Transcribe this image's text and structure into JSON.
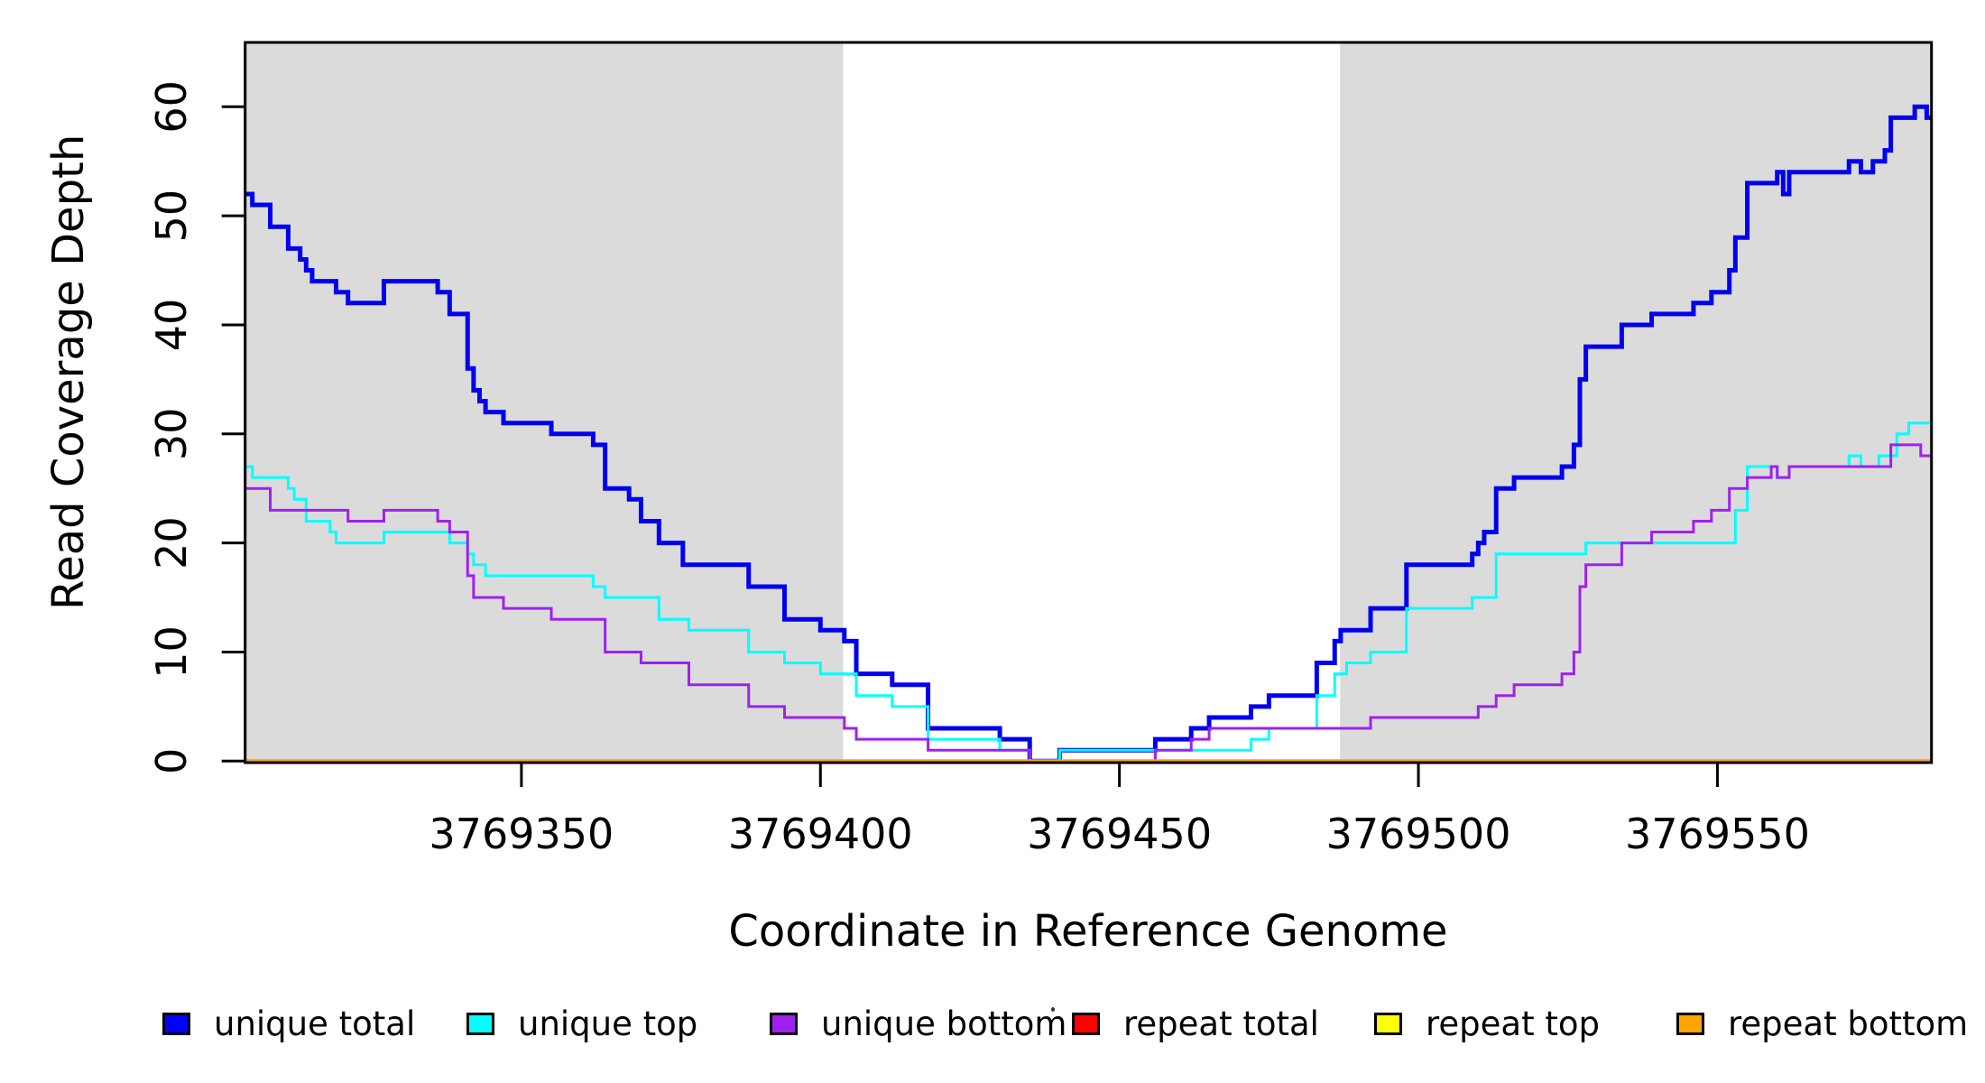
{
  "figure": {
    "x_axis_title": "Coordinate in Reference Genome",
    "y_axis_title": "Read Coverage Depth"
  },
  "chart_data": {
    "type": "line",
    "subtype": "step-after",
    "title": "",
    "xlabel": "Coordinate in Reference Genome",
    "ylabel": "Read Coverage Depth",
    "xlim": [
      3769303.8,
      3769585.8
    ],
    "ylim": [
      0,
      65.9
    ],
    "x_ticks": [
      3769350,
      3769400,
      3769450,
      3769500,
      3769550
    ],
    "y_ticks": [
      0,
      10,
      20,
      30,
      40,
      50,
      60
    ],
    "grid": false,
    "legend_position": "bottom",
    "background_color": "#ffffff",
    "shaded_region_color": "#DBDBDB",
    "shaded_regions": [
      {
        "x0": 3769303.8,
        "x1": 3769403.8
      },
      {
        "x0": 3769486.9,
        "x1": 3769585.8
      }
    ],
    "series": [
      {
        "name": "unique total",
        "color": "#0000EE",
        "width": 5,
        "points": [
          [
            3769304,
            52
          ],
          [
            3769305,
            51
          ],
          [
            3769308,
            49
          ],
          [
            3769311,
            47
          ],
          [
            3769313,
            46
          ],
          [
            3769314,
            45
          ],
          [
            3769315,
            44
          ],
          [
            3769319,
            43
          ],
          [
            3769321,
            42
          ],
          [
            3769327,
            44
          ],
          [
            3769336,
            43
          ],
          [
            3769338,
            41
          ],
          [
            3769341,
            36
          ],
          [
            3769342,
            34
          ],
          [
            3769343,
            33
          ],
          [
            3769344,
            32
          ],
          [
            3769347,
            31
          ],
          [
            3769355,
            30
          ],
          [
            3769362,
            29
          ],
          [
            3769364,
            25
          ],
          [
            3769368,
            24
          ],
          [
            3769370,
            22
          ],
          [
            3769373,
            20
          ],
          [
            3769377,
            18
          ],
          [
            3769388,
            16
          ],
          [
            3769394,
            13
          ],
          [
            3769400,
            12
          ],
          [
            3769404,
            11
          ],
          [
            3769406,
            8
          ],
          [
            3769412,
            7
          ],
          [
            3769418,
            3
          ],
          [
            3769430,
            2
          ],
          [
            3769435,
            0
          ],
          [
            3769440,
            1
          ],
          [
            3769456,
            2
          ],
          [
            3769462,
            3
          ],
          [
            3769465,
            4
          ],
          [
            3769472,
            5
          ],
          [
            3769475,
            6
          ],
          [
            3769483,
            9
          ],
          [
            3769486,
            11
          ],
          [
            3769487,
            12
          ],
          [
            3769492,
            14
          ],
          [
            3769498,
            18
          ],
          [
            3769509,
            19
          ],
          [
            3769510,
            20
          ],
          [
            3769511,
            21
          ],
          [
            3769513,
            25
          ],
          [
            3769516,
            26
          ],
          [
            3769524,
            27
          ],
          [
            3769526,
            29
          ],
          [
            3769527,
            35
          ],
          [
            3769528,
            38
          ],
          [
            3769534,
            40
          ],
          [
            3769539,
            41
          ],
          [
            3769546,
            42
          ],
          [
            3769549,
            43
          ],
          [
            3769552,
            45
          ],
          [
            3769553,
            48
          ],
          [
            3769555,
            53
          ],
          [
            3769560,
            54
          ],
          [
            3769561,
            52
          ],
          [
            3769562,
            54
          ],
          [
            3769572,
            55
          ],
          [
            3769574,
            54
          ],
          [
            3769576,
            55
          ],
          [
            3769578,
            56
          ],
          [
            3769579,
            59
          ],
          [
            3769583,
            60
          ],
          [
            3769585,
            59
          ]
        ]
      },
      {
        "name": "unique top",
        "color": "#00FFFF",
        "width": 3,
        "points": [
          [
            3769304,
            27
          ],
          [
            3769305,
            26
          ],
          [
            3769311,
            25
          ],
          [
            3769312,
            24
          ],
          [
            3769314,
            22
          ],
          [
            3769318,
            21
          ],
          [
            3769319,
            20
          ],
          [
            3769327,
            21
          ],
          [
            3769338,
            20
          ],
          [
            3769341,
            19
          ],
          [
            3769342,
            18
          ],
          [
            3769344,
            17
          ],
          [
            3769362,
            16
          ],
          [
            3769364,
            15
          ],
          [
            3769373,
            13
          ],
          [
            3769378,
            12
          ],
          [
            3769388,
            10
          ],
          [
            3769394,
            9
          ],
          [
            3769400,
            8
          ],
          [
            3769406,
            6
          ],
          [
            3769412,
            5
          ],
          [
            3769418,
            2
          ],
          [
            3769430,
            1
          ],
          [
            3769435,
            0
          ],
          [
            3769440,
            1
          ],
          [
            3769472,
            2
          ],
          [
            3769475,
            3
          ],
          [
            3769483,
            6
          ],
          [
            3769486,
            8
          ],
          [
            3769488,
            9
          ],
          [
            3769492,
            10
          ],
          [
            3769498,
            14
          ],
          [
            3769509,
            15
          ],
          [
            3769513,
            19
          ],
          [
            3769528,
            20
          ],
          [
            3769553,
            23
          ],
          [
            3769555,
            27
          ],
          [
            3769560,
            26
          ],
          [
            3769562,
            27
          ],
          [
            3769572,
            28
          ],
          [
            3769574,
            27
          ],
          [
            3769577,
            28
          ],
          [
            3769580,
            30
          ],
          [
            3769582,
            31
          ]
        ]
      },
      {
        "name": "unique bottom",
        "color": "#A020F0",
        "width": 3,
        "points": [
          [
            3769304,
            25
          ],
          [
            3769308,
            23
          ],
          [
            3769321,
            22
          ],
          [
            3769327,
            23
          ],
          [
            3769336,
            22
          ],
          [
            3769338,
            21
          ],
          [
            3769341,
            17
          ],
          [
            3769342,
            15
          ],
          [
            3769347,
            14
          ],
          [
            3769355,
            13
          ],
          [
            3769364,
            10
          ],
          [
            3769370,
            9
          ],
          [
            3769378,
            7
          ],
          [
            3769388,
            5
          ],
          [
            3769394,
            4
          ],
          [
            3769404,
            3
          ],
          [
            3769406,
            2
          ],
          [
            3769418,
            1
          ],
          [
            3769435,
            0
          ],
          [
            3769456,
            1
          ],
          [
            3769462,
            2
          ],
          [
            3769465,
            3
          ],
          [
            3769492,
            4
          ],
          [
            3769510,
            5
          ],
          [
            3769513,
            6
          ],
          [
            3769516,
            7
          ],
          [
            3769524,
            8
          ],
          [
            3769526,
            10
          ],
          [
            3769527,
            16
          ],
          [
            3769528,
            18
          ],
          [
            3769534,
            20
          ],
          [
            3769539,
            21
          ],
          [
            3769546,
            22
          ],
          [
            3769549,
            23
          ],
          [
            3769552,
            25
          ],
          [
            3769555,
            26
          ],
          [
            3769559,
            27
          ],
          [
            3769560,
            26
          ],
          [
            3769562,
            27
          ],
          [
            3769579,
            29
          ],
          [
            3769584,
            28
          ]
        ]
      },
      {
        "name": "repeat total",
        "color": "#FF0000",
        "width": 3,
        "points": [
          [
            3769304,
            0
          ]
        ]
      },
      {
        "name": "repeat top",
        "color": "#FFFF00",
        "width": 3,
        "points": [
          [
            3769304,
            0
          ]
        ]
      },
      {
        "name": "repeat bottom",
        "color": "#FFA500",
        "width": 4,
        "points": [
          [
            3769304,
            0
          ]
        ]
      }
    ],
    "legend": [
      {
        "label": "unique total",
        "color": "#0000FF"
      },
      {
        "label": "unique top",
        "color": "#00FFFF"
      },
      {
        "label": "unique bottom",
        "color": "#A020F0"
      },
      {
        "label": "repeat total",
        "color": "#FF0000"
      },
      {
        "label": "repeat top",
        "color": "#FFFF00"
      },
      {
        "label": "repeat bottom",
        "color": "#FFA500"
      }
    ]
  }
}
